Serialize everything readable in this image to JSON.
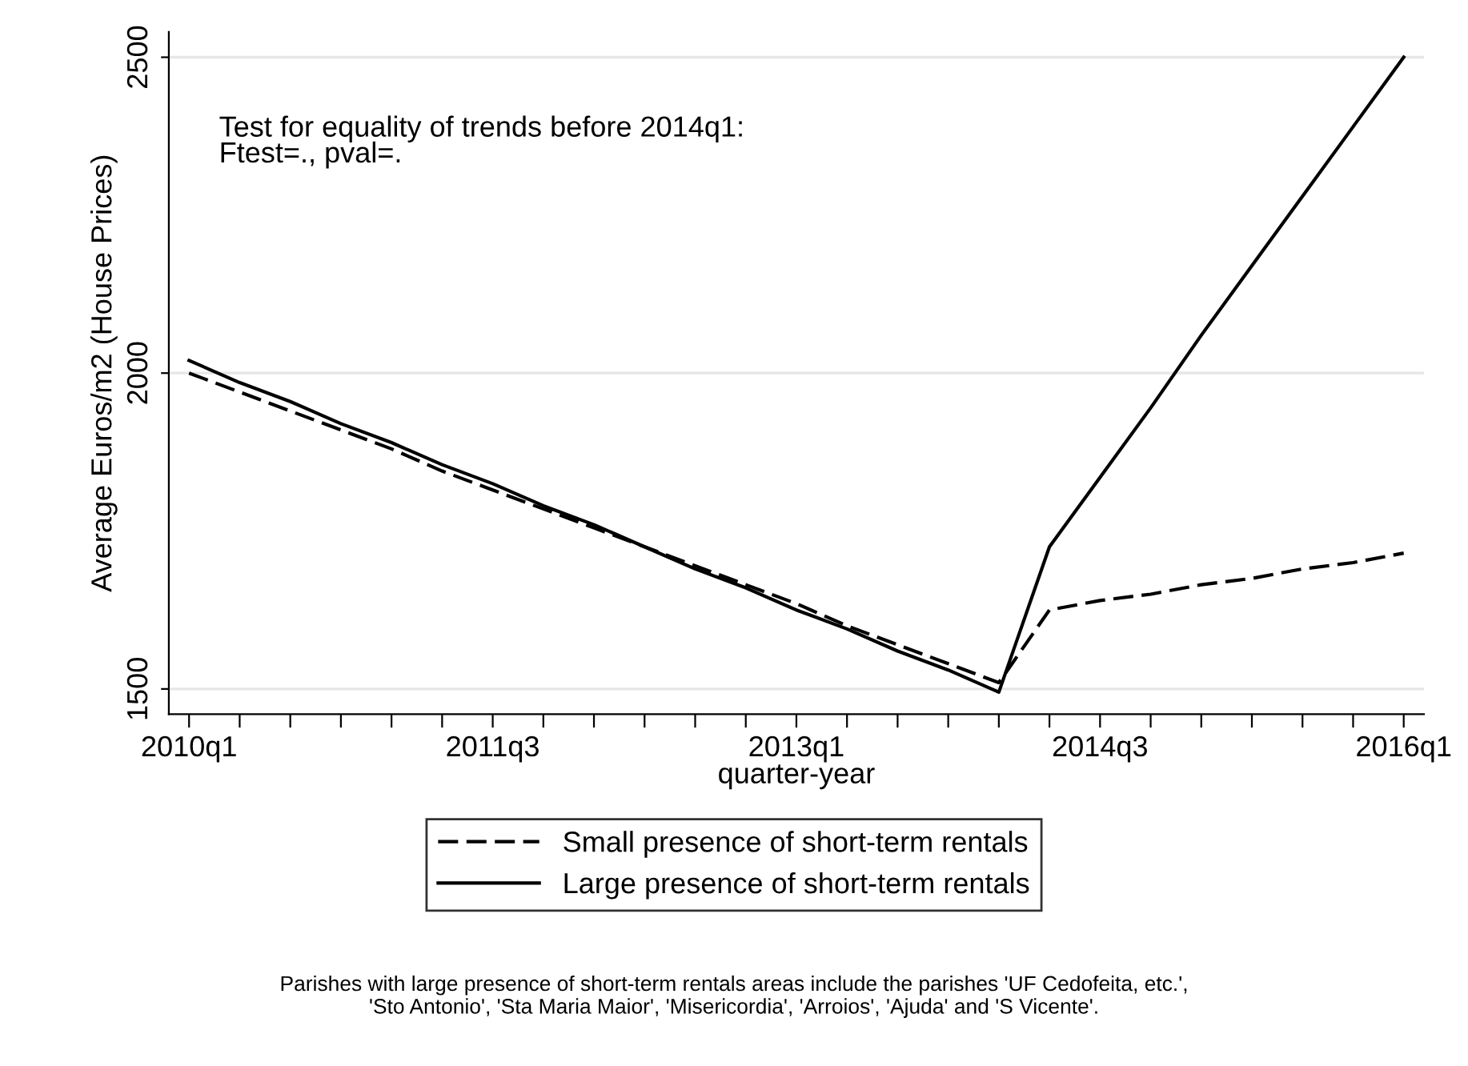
{
  "chart_data": {
    "type": "line",
    "xlabel": "quarter-year",
    "ylabel": "Average Euros/m2 (House Prices)",
    "ylim": [
      1460,
      2540
    ],
    "categories": [
      "2010q1",
      null,
      null,
      null,
      null,
      null,
      "2011q3",
      null,
      null,
      null,
      null,
      null,
      "2013q1",
      null,
      null,
      null,
      null,
      null,
      "2014q3",
      null,
      null,
      null,
      null,
      null,
      "2016q1"
    ],
    "yticks": [
      1500,
      2000,
      2500
    ],
    "grid": "y",
    "legend": "bottom",
    "marker": "none",
    "series": [
      {
        "name": "Small presence of short-term rentals",
        "color": "#000000",
        "line_style": "dashed",
        "values": [
          2000,
          1970,
          1940,
          1910,
          1880,
          1845,
          1815,
          1785,
          1755,
          1725,
          1695,
          1665,
          1635,
          1600,
          1570,
          1540,
          1510,
          1625,
          1640,
          1650,
          1665,
          1675,
          1690,
          1700,
          1715
        ]
      },
      {
        "name": "Large presence of short-term rentals",
        "color": "#000000",
        "line_style": "solid",
        "values": [
          2020,
          1985,
          1955,
          1920,
          1890,
          1855,
          1825,
          1790,
          1760,
          1725,
          1690,
          1660,
          1625,
          1595,
          1560,
          1530,
          1495,
          1725,
          1835,
          1945,
          2060,
          2170,
          2280,
          2390,
          2500
        ]
      }
    ],
    "annotations": [
      "Test for equality of trends before 2014q1:\nFtest=., pval=.",
      "Parishes with large presence of short-term rentals areas include the parishes 'UF Cedofeita, etc.',\n'Sto Antonio', 'Sta Maria Maior', 'Misericordia', 'Arroios', 'Ajuda' and 'S Vicente'."
    ]
  }
}
